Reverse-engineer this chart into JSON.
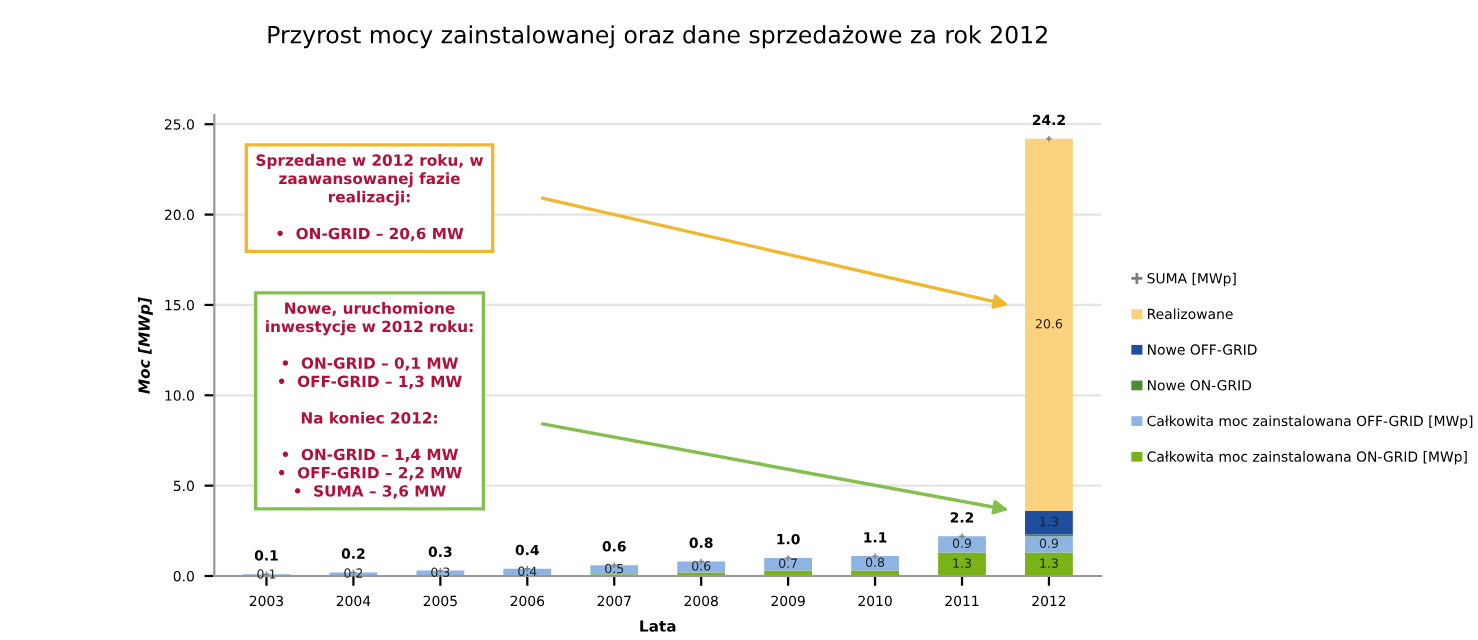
{
  "chart_data": {
    "type": "bar",
    "stacked": true,
    "title": "Przyrost mocy zainstalowanej oraz dane sprzedażowe za rok 2012",
    "xlabel": "Lata",
    "ylabel": "Moc [MWp]",
    "categories": [
      "2003",
      "2004",
      "2005",
      "2006",
      "2007",
      "2008",
      "2009",
      "2010",
      "2011",
      "2012"
    ],
    "series": [
      {
        "name": "Całkowita moc zainstalowana ON-GRID [MWp]",
        "color": "#7ab317",
        "values": [
          0.0,
          0.0,
          0.0,
          0.0,
          0.1,
          0.2,
          0.3,
          0.3,
          1.3,
          1.3
        ],
        "value_labels": [
          null,
          null,
          null,
          null,
          null,
          null,
          null,
          null,
          "1.3",
          "1.3"
        ]
      },
      {
        "name": "Całkowita moc zainstalowana OFF-GRID [MWp]",
        "color": "#8db4e2",
        "values": [
          0.1,
          0.2,
          0.3,
          0.4,
          0.5,
          0.6,
          0.7,
          0.8,
          0.9,
          0.9
        ],
        "value_labels": [
          "0.1",
          "0.2",
          "0.3",
          "0.4",
          "0.5",
          "0.6",
          "0.7",
          "0.8",
          "0.9",
          "0.9"
        ]
      },
      {
        "name": "Nowe ON-GRID",
        "color": "#4e8a2e",
        "values": [
          0,
          0,
          0,
          0,
          0,
          0,
          0,
          0,
          0,
          0.1
        ]
      },
      {
        "name": "Nowe OFF-GRID",
        "color": "#1f4e9c",
        "values": [
          0,
          0,
          0,
          0,
          0,
          0,
          0,
          0,
          0,
          1.3
        ],
        "value_labels": [
          null,
          null,
          null,
          null,
          null,
          null,
          null,
          null,
          null,
          "1.3"
        ]
      },
      {
        "name": "Realizowane",
        "color": "#fcd27e",
        "values": [
          0,
          0,
          0,
          0,
          0,
          0,
          0,
          0,
          0,
          20.6
        ],
        "value_labels": [
          null,
          null,
          null,
          null,
          null,
          null,
          null,
          null,
          null,
          "20.6"
        ]
      },
      {
        "name": "SUMA [MWp]",
        "type": "scatter",
        "marker": "cross",
        "color": "#7f7f7f",
        "values": [
          0.1,
          0.2,
          0.3,
          0.4,
          0.6,
          0.8,
          1.0,
          1.1,
          2.2,
          24.2
        ],
        "value_labels": [
          "0.1",
          "0.2",
          "0.3",
          "0.4",
          "0.6",
          "0.8",
          "1.0",
          "1.1",
          "2.2",
          "24.2"
        ]
      }
    ],
    "ylim": [
      0,
      25.5
    ],
    "yticks": [
      {
        "value": 0,
        "label": "0.0"
      },
      {
        "value": 5,
        "label": "5.0"
      },
      {
        "value": 10,
        "label": "10.0"
      },
      {
        "value": 15,
        "label": "15.0"
      },
      {
        "value": 20,
        "label": "20.0"
      },
      {
        "value": 25,
        "label": "25.0"
      }
    ],
    "grid": "y",
    "legend": "right",
    "annotations": [
      "Sprzedane w 2012 roku, w\nzaawansowanej fazie\nrealizacji:\n\n•  ON-GRID – 20,6 MW",
      "Nowe, uruchomione\ninwestycje w 2012 roku:\n\n•  ON-GRID – 0,1 MW\n•  OFF-GRID – 1,3 MW\n\nNa koniec 2012:\n\n•  ON-GRID – 1,4 MW\n•  OFF-GRID – 2,2 MW\n•  SUMA – 3,6 MW"
    ]
  }
}
